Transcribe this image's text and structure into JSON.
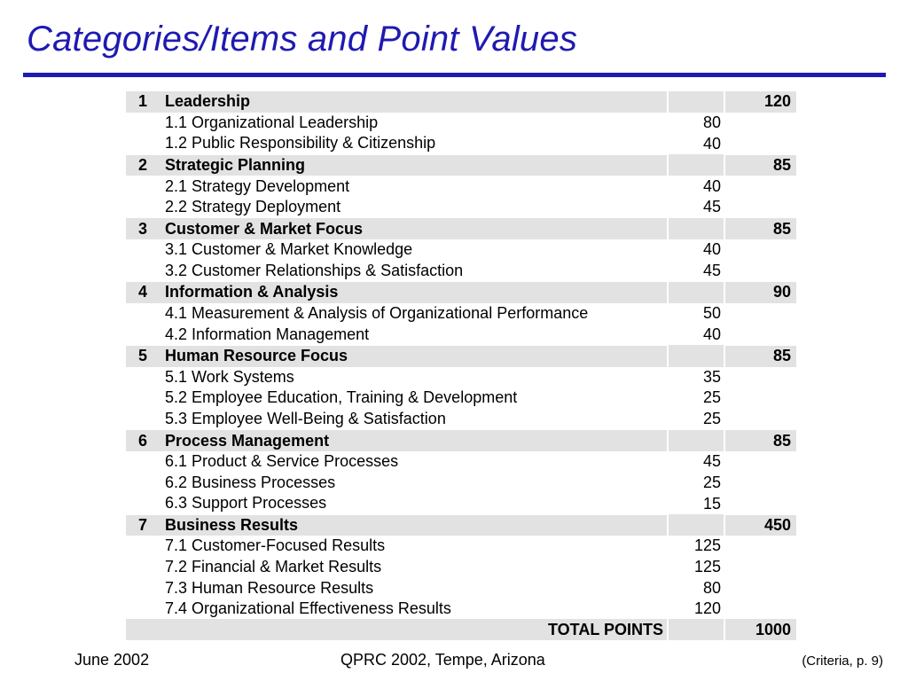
{
  "title": "Categories/Items and Point Values",
  "categories": [
    {
      "num": "1",
      "name": "Leadership",
      "points": "120",
      "items": [
        {
          "label": "1.1 Organizational Leadership",
          "points": "80"
        },
        {
          "label": "1.2 Public Responsibility & Citizenship",
          "points": "40"
        }
      ]
    },
    {
      "num": "2",
      "name": "Strategic Planning",
      "points": "85",
      "items": [
        {
          "label": "2.1 Strategy Development",
          "points": "40"
        },
        {
          "label": "2.2 Strategy Deployment",
          "points": "45"
        }
      ]
    },
    {
      "num": "3",
      "name": "Customer & Market Focus",
      "points": "85",
      "items": [
        {
          "label": "3.1 Customer & Market Knowledge",
          "points": "40"
        },
        {
          "label": "3.2 Customer Relationships & Satisfaction",
          "points": "45"
        }
      ]
    },
    {
      "num": "4",
      "name": "Information & Analysis",
      "points": "90",
      "items": [
        {
          "label": "4.1 Measurement & Analysis of Organizational Performance",
          "points": "50"
        },
        {
          "label": "4.2 Information Management",
          "points": "40"
        }
      ]
    },
    {
      "num": "5",
      "name": "Human Resource Focus",
      "points": "85",
      "items": [
        {
          "label": "5.1 Work Systems",
          "points": "35"
        },
        {
          "label": "5.2 Employee Education, Training & Development",
          "points": "25"
        },
        {
          "label": "5.3 Employee Well-Being & Satisfaction",
          "points": "25"
        }
      ]
    },
    {
      "num": "6",
      "name": "Process Management",
      "points": "85",
      "items": [
        {
          "label": "6.1 Product & Service Processes",
          "points": "45"
        },
        {
          "label": "6.2 Business Processes",
          "points": "25"
        },
        {
          "label": "6.3 Support Processes",
          "points": "15"
        }
      ]
    },
    {
      "num": "7",
      "name": "Business Results",
      "points": "450",
      "items": [
        {
          "label": "7.1 Customer-Focused Results",
          "points": "125"
        },
        {
          "label": "7.2 Financial & Market Results",
          "points": "125"
        },
        {
          "label": "7.3 Human Resource Results",
          "points": "80"
        },
        {
          "label": "7.4 Organizational Effectiveness Results",
          "points": "120"
        }
      ]
    }
  ],
  "total": {
    "label": "TOTAL POINTS",
    "points": "1000"
  },
  "footer": {
    "left": "June 2002",
    "center": "QPRC 2002, Tempe, Arizona",
    "right": "(Criteria, p. 9)"
  },
  "colors": {
    "title": "#1f1ab0",
    "rule": "#1f1ab0",
    "band": "#e2e2e2"
  }
}
